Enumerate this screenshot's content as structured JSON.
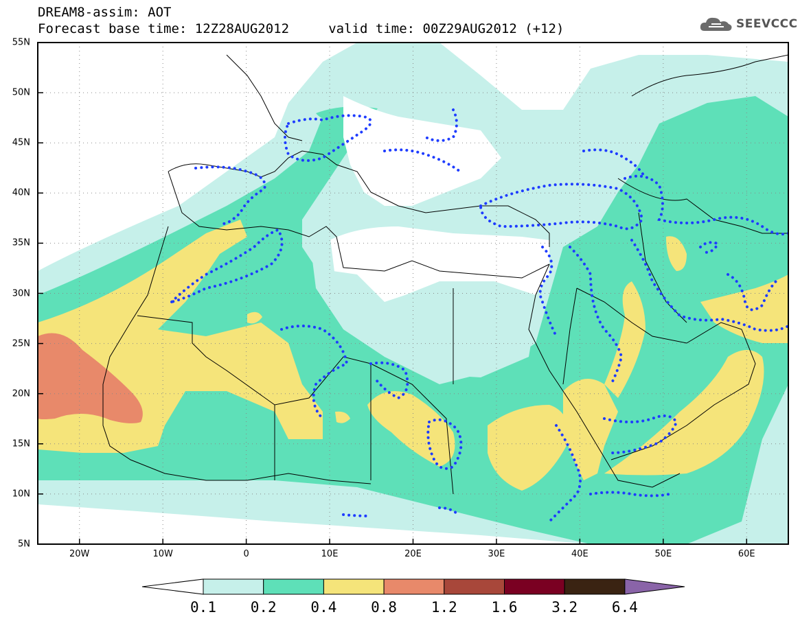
{
  "header": {
    "title_line1": "DREAM8-assim: AOT",
    "title_line2": "Forecast base time: 12Z28AUG2012     valid time: 00Z29AUG2012 (+12)"
  },
  "brand": {
    "name": "SEEVCCC",
    "icon": "cloud-icon"
  },
  "map": {
    "lat_labels": [
      "55N",
      "50N",
      "45N",
      "40N",
      "35N",
      "30N",
      "25N",
      "20N",
      "15N",
      "10N",
      "5N"
    ],
    "lon_labels": [
      "20W",
      "10W",
      "0",
      "10E",
      "20E",
      "30E",
      "40E",
      "50E",
      "60E"
    ],
    "lat_values": [
      55,
      50,
      45,
      40,
      35,
      30,
      25,
      20,
      15,
      10,
      5
    ],
    "lon_values": [
      -20,
      -10,
      0,
      10,
      20,
      30,
      40,
      50,
      60
    ],
    "extent": {
      "lon_min": -25,
      "lon_max": 65,
      "lat_min": 5,
      "lat_max": 55
    },
    "grid": "dotted",
    "field": "Aerosol optical thickness (AOT)"
  },
  "colorbar": {
    "levels": [
      "0.1",
      "0.2",
      "0.4",
      "0.8",
      "1.2",
      "1.6",
      "3.2",
      "6.4"
    ],
    "colors": [
      "#ffffff",
      "#c6f0ea",
      "#5ee0b8",
      "#f5e47a",
      "#e8896a",
      "#a8473a",
      "#7a0022",
      "#3a2312",
      "#8a64a8"
    ]
  },
  "colors": {
    "aot_0_1": "#c6f0ea",
    "aot_0_2": "#5ee0b8",
    "aot_0_4": "#f5e47a",
    "aot_0_8": "#e8896a",
    "dotted_contour": "#1e3cff"
  }
}
